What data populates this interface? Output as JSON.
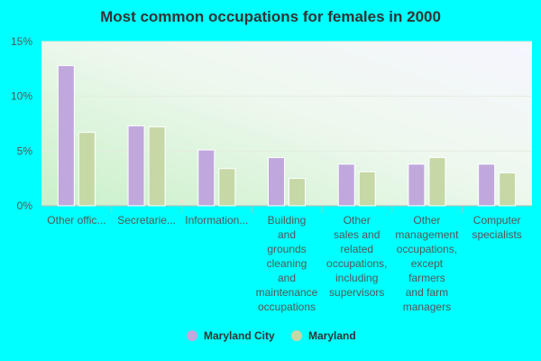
{
  "chart_data": {
    "type": "bar",
    "title": "Most common occupations for females in 2000",
    "xlabel": "",
    "ylabel": "",
    "ylim": [
      0,
      15
    ],
    "yticks": [
      "0%",
      "5%",
      "10%",
      "15%"
    ],
    "ytick_values": [
      0,
      5,
      10,
      15
    ],
    "grid": true,
    "legend_position": "bottom",
    "categories": [
      [
        "Other offic..."
      ],
      [
        "Secretarie..."
      ],
      [
        "Information..."
      ],
      [
        "Building",
        "and",
        "grounds",
        "cleaning",
        "and",
        "maintenance",
        "occupations"
      ],
      [
        "Other",
        "sales and",
        "related",
        "occupations,",
        "including",
        "supervisors"
      ],
      [
        "Other",
        "management",
        "occupations,",
        "except",
        "farmers",
        "and farm",
        "managers"
      ],
      [
        "Computer",
        "specialists"
      ]
    ],
    "series": [
      {
        "name": "Maryland City",
        "color": "#c0a8dc",
        "values": [
          12.8,
          7.3,
          5.1,
          4.4,
          3.8,
          3.8,
          3.8
        ]
      },
      {
        "name": "Maryland",
        "color": "#c5d8a6",
        "values": [
          6.7,
          7.2,
          3.4,
          2.5,
          3.1,
          4.4,
          3.0
        ]
      }
    ]
  }
}
